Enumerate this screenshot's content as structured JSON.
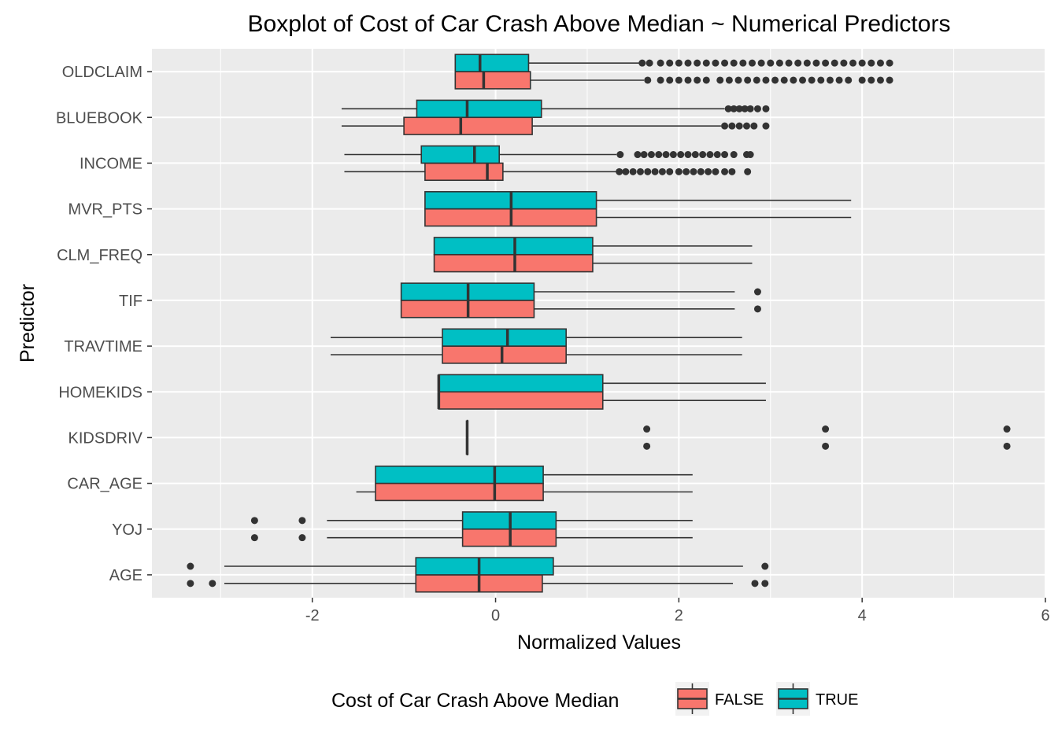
{
  "chart_data": {
    "type": "boxplot",
    "orientation": "horizontal",
    "title": "Boxplot of Cost of Car Crash Above Median ~ Numerical Predictors",
    "xlabel": "Normalized Values",
    "ylabel": "Predictor",
    "xlim": [
      -3.75,
      6.0
    ],
    "x_ticks": [
      -2,
      0,
      2,
      4,
      6
    ],
    "x_tick_labels": [
      "-2",
      "0",
      "2",
      "4",
      "6"
    ],
    "grid": true,
    "legend": {
      "title": "Cost of Car Crash Above Median",
      "position": "bottom",
      "entries": [
        {
          "label": "FALSE",
          "color": "#F8766D"
        },
        {
          "label": "TRUE",
          "color": "#00BFC4"
        }
      ]
    },
    "categories": [
      "OLDCLAIM",
      "BLUEBOOK",
      "INCOME",
      "MVR_PTS",
      "CLM_FREQ",
      "TIF",
      "TRAVTIME",
      "HOMEKIDS",
      "KIDSDRIV",
      "CAR_AGE",
      "YOJ",
      "AGE"
    ],
    "series": [
      {
        "name": "FALSE",
        "color": "#F8766D",
        "boxes": [
          {
            "category": "OLDCLAIM",
            "whisker_low": -0.44,
            "q1": -0.44,
            "median": -0.13,
            "q3": 0.38,
            "whisker_high": 1.62,
            "outliers": [
              1.66,
              1.8,
              1.9,
              2.0,
              2.1,
              2.2,
              2.3,
              2.45,
              2.55,
              2.65,
              2.75,
              2.85,
              2.95,
              3.05,
              3.15,
              3.25,
              3.35,
              3.45,
              3.55,
              3.65,
              3.75,
              3.85,
              4.0,
              4.1,
              4.2,
              4.3
            ]
          },
          {
            "category": "BLUEBOOK",
            "whisker_low": -1.68,
            "q1": -1.0,
            "median": -0.38,
            "q3": 0.4,
            "whisker_high": 2.46,
            "outliers": [
              2.5,
              2.58,
              2.66,
              2.74,
              2.82,
              2.95
            ]
          },
          {
            "category": "INCOME",
            "whisker_low": -1.65,
            "q1": -0.77,
            "median": -0.09,
            "q3": 0.08,
            "whisker_high": 1.32,
            "outliers": [
              1.35,
              1.42,
              1.5,
              1.58,
              1.66,
              1.74,
              1.82,
              1.9,
              2.0,
              2.08,
              2.16,
              2.24,
              2.32,
              2.4,
              2.5,
              2.58,
              2.75
            ]
          },
          {
            "category": "MVR_PTS",
            "whisker_low": -0.77,
            "q1": -0.77,
            "median": 0.17,
            "q3": 1.1,
            "whisker_high": 3.88,
            "outliers": []
          },
          {
            "category": "CLM_FREQ",
            "whisker_low": -0.67,
            "q1": -0.67,
            "median": 0.21,
            "q3": 1.06,
            "whisker_high": 2.8,
            "outliers": []
          },
          {
            "category": "TIF",
            "whisker_low": -1.03,
            "q1": -1.03,
            "median": -0.3,
            "q3": 0.42,
            "whisker_high": 2.61,
            "outliers": [
              2.86
            ]
          },
          {
            "category": "TRAVTIME",
            "whisker_low": -1.8,
            "q1": -0.58,
            "median": 0.07,
            "q3": 0.77,
            "whisker_high": 2.69,
            "outliers": []
          },
          {
            "category": "HOMEKIDS",
            "whisker_low": -0.62,
            "q1": -0.62,
            "median": -0.62,
            "q3": 1.17,
            "whisker_high": 2.95,
            "outliers": []
          },
          {
            "category": "KIDSDRIV",
            "whisker_low": -0.31,
            "q1": -0.31,
            "median": -0.31,
            "q3": -0.31,
            "whisker_high": -0.31,
            "outliers": [
              1.65,
              3.6,
              5.58
            ]
          },
          {
            "category": "CAR_AGE",
            "whisker_low": -1.52,
            "q1": -1.31,
            "median": -0.01,
            "q3": 0.52,
            "whisker_high": 2.15,
            "outliers": []
          },
          {
            "category": "YOJ",
            "whisker_low": -1.84,
            "q1": -0.36,
            "median": 0.16,
            "q3": 0.66,
            "whisker_high": 2.15,
            "outliers": [
              -2.63,
              -2.11
            ]
          },
          {
            "category": "AGE",
            "whisker_low": -2.96,
            "q1": -0.87,
            "median": -0.18,
            "q3": 0.51,
            "whisker_high": 2.59,
            "outliers": [
              -3.33,
              -3.09,
              2.83,
              2.94
            ]
          }
        ]
      },
      {
        "name": "TRUE",
        "color": "#00BFC4",
        "boxes": [
          {
            "category": "OLDCLAIM",
            "whisker_low": -0.44,
            "q1": -0.44,
            "median": -0.17,
            "q3": 0.36,
            "whisker_high": 1.58,
            "outliers": [
              1.6,
              1.68,
              1.8,
              1.9,
              2.0,
              2.1,
              2.2,
              2.3,
              2.4,
              2.5,
              2.6,
              2.7,
              2.8,
              2.9,
              3.0,
              3.1,
              3.2,
              3.3,
              3.4,
              3.5,
              3.6,
              3.7,
              3.8,
              3.9,
              4.0,
              4.1,
              4.2,
              4.3
            ]
          },
          {
            "category": "BLUEBOOK",
            "whisker_low": -1.68,
            "q1": -0.86,
            "median": -0.31,
            "q3": 0.5,
            "whisker_high": 2.5,
            "outliers": [
              2.54,
              2.6,
              2.66,
              2.72,
              2.78,
              2.86,
              2.95
            ]
          },
          {
            "category": "INCOME",
            "whisker_low": -1.65,
            "q1": -0.81,
            "median": -0.23,
            "q3": 0.04,
            "whisker_high": 1.32,
            "outliers": [
              1.36,
              1.55,
              1.62,
              1.7,
              1.78,
              1.86,
              1.94,
              2.02,
              2.1,
              2.18,
              2.26,
              2.34,
              2.42,
              2.5,
              2.6,
              2.74,
              2.78
            ]
          },
          {
            "category": "MVR_PTS",
            "whisker_low": -0.77,
            "q1": -0.77,
            "median": 0.17,
            "q3": 1.1,
            "whisker_high": 3.88,
            "outliers": []
          },
          {
            "category": "CLM_FREQ",
            "whisker_low": -0.67,
            "q1": -0.67,
            "median": 0.21,
            "q3": 1.06,
            "whisker_high": 2.8,
            "outliers": []
          },
          {
            "category": "TIF",
            "whisker_low": -1.03,
            "q1": -1.03,
            "median": -0.3,
            "q3": 0.42,
            "whisker_high": 2.61,
            "outliers": [
              2.86
            ]
          },
          {
            "category": "TRAVTIME",
            "whisker_low": -1.8,
            "q1": -0.58,
            "median": 0.13,
            "q3": 0.77,
            "whisker_high": 2.69,
            "outliers": []
          },
          {
            "category": "HOMEKIDS",
            "whisker_low": -0.62,
            "q1": -0.62,
            "median": -0.62,
            "q3": 1.17,
            "whisker_high": 2.95,
            "outliers": []
          },
          {
            "category": "KIDSDRIV",
            "whisker_low": -0.31,
            "q1": -0.31,
            "median": -0.31,
            "q3": -0.31,
            "whisker_high": -0.31,
            "outliers": [
              1.65,
              3.6,
              5.58
            ]
          },
          {
            "category": "CAR_AGE",
            "whisker_low": -1.31,
            "q1": -1.31,
            "median": -0.01,
            "q3": 0.52,
            "whisker_high": 2.15,
            "outliers": []
          },
          {
            "category": "YOJ",
            "whisker_low": -1.84,
            "q1": -0.36,
            "median": 0.16,
            "q3": 0.66,
            "whisker_high": 2.15,
            "outliers": [
              -2.63,
              -2.11
            ]
          },
          {
            "category": "AGE",
            "whisker_low": -2.96,
            "q1": -0.87,
            "median": -0.18,
            "q3": 0.63,
            "whisker_high": 2.7,
            "outliers": [
              -3.33,
              2.94
            ]
          }
        ]
      }
    ]
  }
}
